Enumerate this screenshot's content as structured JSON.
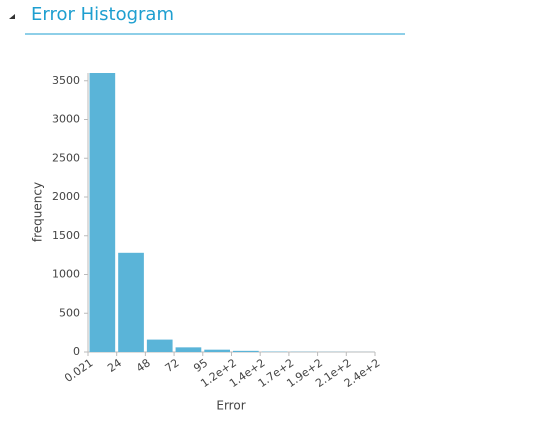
{
  "chart_data": {
    "type": "histogram",
    "title": "Error Histogram",
    "xlabel": "Error",
    "ylabel": "frequency",
    "bins": [
      0.021,
      23.8,
      47.6,
      71.4,
      95.2,
      119,
      142.8,
      166.6,
      190.4,
      214.2,
      238
    ],
    "counts": [
      3600,
      1280,
      160,
      60,
      30,
      15,
      5,
      3,
      2,
      1
    ],
    "color": "#5ab4d8",
    "xlim": [
      0.021,
      238
    ],
    "xticks": [
      {
        "value": 0.021,
        "label": "0.021"
      },
      {
        "value": 23.8,
        "label": "24"
      },
      {
        "value": 47.6,
        "label": "48"
      },
      {
        "value": 71.4,
        "label": "72"
      },
      {
        "value": 95.2,
        "label": "95"
      },
      {
        "value": 119,
        "label": "1.2e+2"
      },
      {
        "value": 142.8,
        "label": "1.4e+2"
      },
      {
        "value": 166.6,
        "label": "1.7e+2"
      },
      {
        "value": 190.4,
        "label": "1.9e+2"
      },
      {
        "value": 214.2,
        "label": "2.1e+2"
      },
      {
        "value": 238,
        "label": "2.4e+2"
      }
    ],
    "ylim": [
      0,
      3600
    ],
    "yticks": [
      0,
      500,
      1000,
      1500,
      2000,
      2500,
      3000,
      3500
    ]
  }
}
